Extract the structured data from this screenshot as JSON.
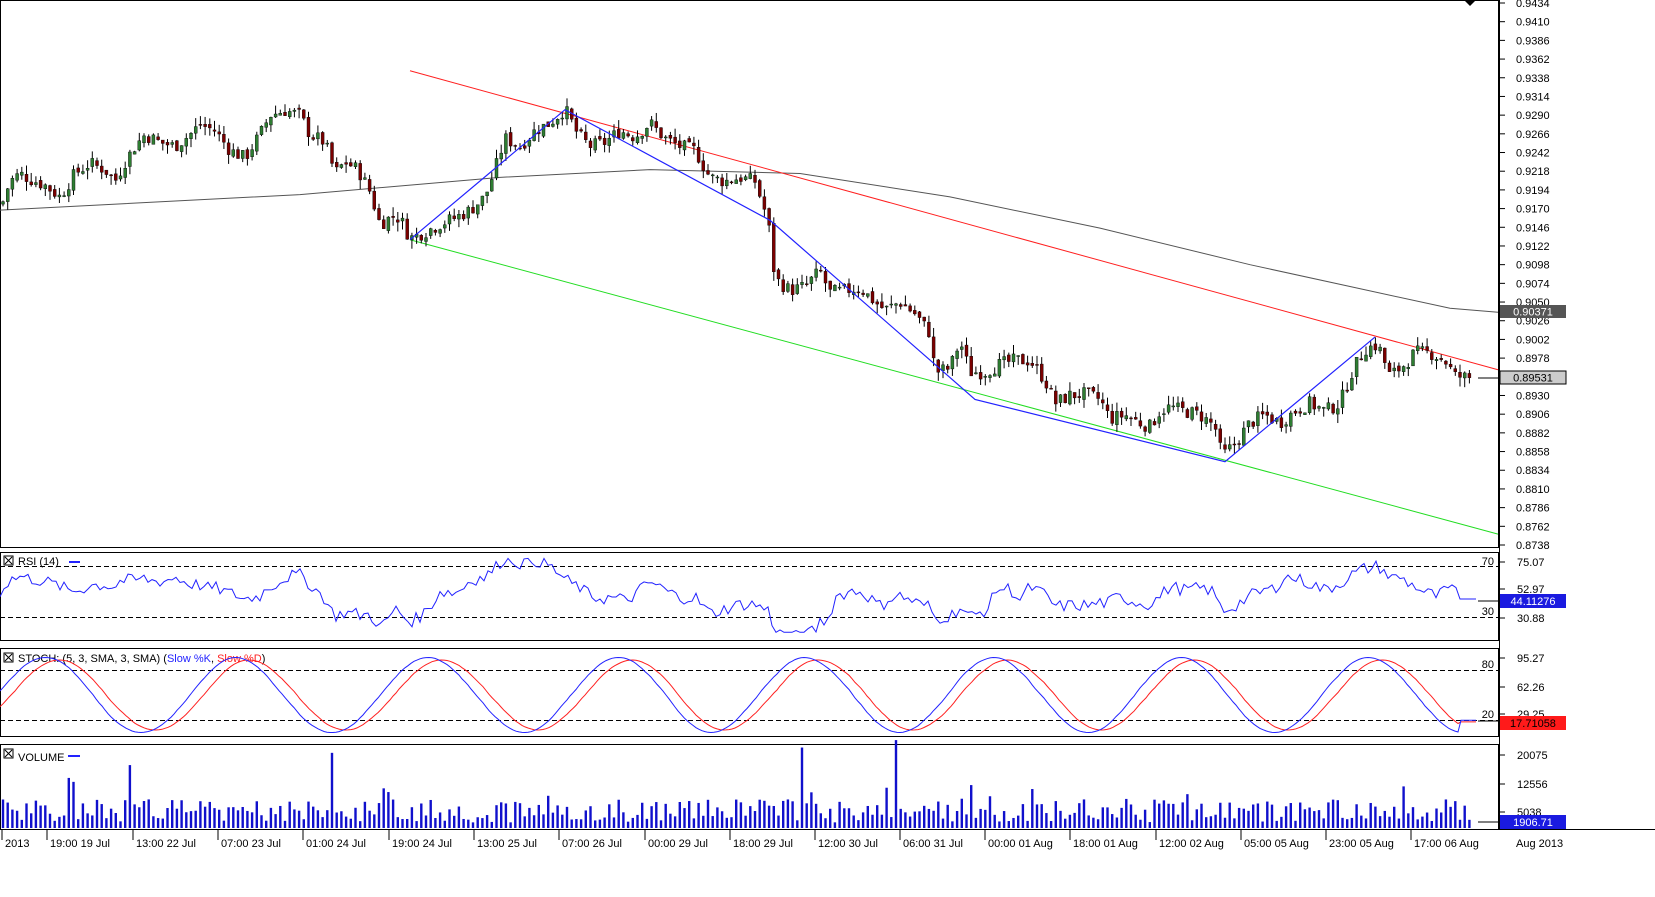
{
  "colors": {
    "bull": "#2e7d32",
    "bear": "#7a0000",
    "ma": "#555555",
    "channel_upper": "#ff2020",
    "channel_lower": "#22dd22",
    "zigzag": "#2222ff",
    "rsi_line": "#2222ff",
    "stoch_k": "#2222ff",
    "stoch_d": "#ff2020",
    "volume": "#1010cc",
    "price_box_bg": "#555555",
    "last_price_box_bg": "#cccccc",
    "stoch_box_bg": "#ff1a1a",
    "rsi_box_bg": "#1a1ae0",
    "volume_box_bg": "#1a1ae0"
  },
  "price_panel": {
    "y_ticks": [
      "0.9434",
      "0.9410",
      "0.9386",
      "0.9362",
      "0.9338",
      "0.9314",
      "0.9290",
      "0.9266",
      "0.9242",
      "0.9218",
      "0.9194",
      "0.9170",
      "0.9146",
      "0.9122",
      "0.9098",
      "0.9074",
      "0.9050",
      "0.9026",
      "0.9002",
      "0.8978",
      "0.8954",
      "0.8930",
      "0.8906",
      "0.8882",
      "0.8858",
      "0.8834",
      "0.8810",
      "0.8786",
      "0.8762",
      "0.8738"
    ],
    "ma_label": "0.90371",
    "last_price_label": "0.89531"
  },
  "rsi_panel": {
    "title": "RSI (14)",
    "level_high_label": "70",
    "level_low_label": "30",
    "y_ticks": [
      "75.07",
      "52.97",
      "30.88"
    ],
    "current_label": "44.11276"
  },
  "stoch_panel": {
    "title_prefix": "STOCH: (5, 3, SMA, 3, SMA) (",
    "k_label": "Slow %K",
    "separator": ", ",
    "d_label": "Slow %D",
    "title_suffix": ")",
    "level_high_label": "80",
    "level_low_label": "20",
    "y_ticks": [
      "95.27",
      "62.26",
      "29.25"
    ],
    "current_label": "17.71058"
  },
  "volume_panel": {
    "title": "VOLUME",
    "y_ticks": [
      "20075",
      "12556",
      "5038"
    ],
    "current_label": "1906.71"
  },
  "x_axis": {
    "labels": [
      "2013",
      "19:00 19 Jul",
      "13:00 22 Jul",
      "07:00 23 Jul",
      "01:00 24 Jul",
      "19:00 24 Jul",
      "13:00 25 Jul",
      "07:00 26 Jul",
      "00:00 29 Jul",
      "18:00 29 Jul",
      "12:00 30 Jul",
      "06:00 31 Jul",
      "00:00 01 Aug",
      "18:00 01 Aug",
      "12:00 02 Aug",
      "05:00 05 Aug",
      "23:00 05 Aug",
      "17:00 06 Aug"
    ],
    "right_label": "Aug 2013"
  },
  "chart_data": {
    "type": "candlestick",
    "instrument_hint": "hourly candles with 200-period moving average, descending channel",
    "y_range": [
      0.8738,
      0.9434
    ],
    "x_labels": [
      "2013",
      "19:00 19 Jul",
      "13:00 22 Jul",
      "07:00 23 Jul",
      "01:00 24 Jul",
      "19:00 24 Jul",
      "13:00 25 Jul",
      "07:00 26 Jul",
      "00:00 29 Jul",
      "18:00 29 Jul",
      "12:00 30 Jul",
      "06:00 31 Jul",
      "00:00 01 Aug",
      "18:00 01 Aug",
      "12:00 02 Aug",
      "05:00 05 Aug",
      "23:00 05 Aug",
      "17:00 06 Aug"
    ],
    "close_path": [
      [
        0,
        0.9168
      ],
      [
        10,
        0.9205
      ],
      [
        20,
        0.9215
      ],
      [
        30,
        0.9208
      ],
      [
        45,
        0.92
      ],
      [
        60,
        0.9185
      ],
      [
        75,
        0.9215
      ],
      [
        90,
        0.9228
      ],
      [
        105,
        0.922
      ],
      [
        115,
        0.9205
      ],
      [
        125,
        0.923
      ],
      [
        135,
        0.925
      ],
      [
        145,
        0.9265
      ],
      [
        160,
        0.9255
      ],
      [
        175,
        0.925
      ],
      [
        190,
        0.9265
      ],
      [
        200,
        0.9278
      ],
      [
        215,
        0.927
      ],
      [
        230,
        0.9245
      ],
      [
        245,
        0.9235
      ],
      [
        260,
        0.9265
      ],
      [
        270,
        0.929
      ],
      [
        285,
        0.9296
      ],
      [
        300,
        0.929
      ],
      [
        310,
        0.9265
      ],
      [
        325,
        0.9255
      ],
      [
        335,
        0.9215
      ],
      [
        345,
        0.923
      ],
      [
        358,
        0.922
      ],
      [
        370,
        0.9192
      ],
      [
        380,
        0.915
      ],
      [
        392,
        0.916
      ],
      [
        400,
        0.9158
      ],
      [
        410,
        0.9132
      ],
      [
        425,
        0.914
      ],
      [
        440,
        0.915
      ],
      [
        455,
        0.9158
      ],
      [
        470,
        0.9168
      ],
      [
        485,
        0.9185
      ],
      [
        495,
        0.922
      ],
      [
        505,
        0.926
      ],
      [
        520,
        0.925
      ],
      [
        535,
        0.927
      ],
      [
        550,
        0.928
      ],
      [
        565,
        0.9298
      ],
      [
        578,
        0.9265
      ],
      [
        590,
        0.925
      ],
      [
        605,
        0.9255
      ],
      [
        620,
        0.927
      ],
      [
        635,
        0.9262
      ],
      [
        650,
        0.928
      ],
      [
        665,
        0.926
      ],
      [
        680,
        0.925
      ],
      [
        695,
        0.9245
      ],
      [
        710,
        0.921
      ],
      [
        725,
        0.9205
      ],
      [
        740,
        0.921
      ],
      [
        755,
        0.9205
      ],
      [
        768,
        0.9155
      ],
      [
        775,
        0.908
      ],
      [
        790,
        0.9065
      ],
      [
        805,
        0.907
      ],
      [
        820,
        0.909
      ],
      [
        830,
        0.9062
      ],
      [
        845,
        0.9065
      ],
      [
        860,
        0.9068
      ],
      [
        875,
        0.905
      ],
      [
        885,
        0.904
      ],
      [
        900,
        0.905
      ],
      [
        915,
        0.9035
      ],
      [
        930,
        0.901
      ],
      [
        935,
        0.896
      ],
      [
        950,
        0.8965
      ],
      [
        960,
        0.9
      ],
      [
        970,
        0.896
      ],
      [
        985,
        0.896
      ],
      [
        1000,
        0.897
      ],
      [
        1015,
        0.8975
      ],
      [
        1030,
        0.8975
      ],
      [
        1045,
        0.895
      ],
      [
        1055,
        0.892
      ],
      [
        1070,
        0.893
      ],
      [
        1085,
        0.8932
      ],
      [
        1100,
        0.8925
      ],
      [
        1110,
        0.89
      ],
      [
        1125,
        0.8905
      ],
      [
        1140,
        0.8895
      ],
      [
        1150,
        0.889
      ],
      [
        1160,
        0.891
      ],
      [
        1170,
        0.8915
      ],
      [
        1185,
        0.891
      ],
      [
        1200,
        0.8905
      ],
      [
        1215,
        0.889
      ],
      [
        1222,
        0.8852
      ],
      [
        1235,
        0.8868
      ],
      [
        1250,
        0.8895
      ],
      [
        1265,
        0.8905
      ],
      [
        1280,
        0.8895
      ],
      [
        1295,
        0.891
      ],
      [
        1310,
        0.892
      ],
      [
        1325,
        0.891
      ],
      [
        1340,
        0.892
      ],
      [
        1352,
        0.896
      ],
      [
        1365,
        0.899
      ],
      [
        1378,
        0.8995
      ],
      [
        1390,
        0.8955
      ],
      [
        1405,
        0.897
      ],
      [
        1415,
        0.8985
      ],
      [
        1430,
        0.8985
      ],
      [
        1445,
        0.8975
      ],
      [
        1455,
        0.8955
      ],
      [
        1468,
        0.8953
      ]
    ],
    "moving_average_path": [
      [
        0,
        0.9168
      ],
      [
        300,
        0.9188
      ],
      [
        500,
        0.921
      ],
      [
        650,
        0.922
      ],
      [
        800,
        0.9215
      ],
      [
        950,
        0.9185
      ],
      [
        1100,
        0.9145
      ],
      [
        1250,
        0.9098
      ],
      [
        1350,
        0.907
      ],
      [
        1450,
        0.9042
      ],
      [
        1498,
        0.9037
      ]
    ],
    "channel_upper": [
      [
        410,
        0.9347
      ],
      [
        1498,
        0.8963
      ]
    ],
    "channel_lower": [
      [
        410,
        0.913
      ],
      [
        1498,
        0.8752
      ]
    ],
    "zigzag": [
      [
        410,
        0.913
      ],
      [
        565,
        0.9297
      ],
      [
        770,
        0.9155
      ],
      [
        975,
        0.8925
      ],
      [
        1225,
        0.8845
      ],
      [
        1375,
        0.9005
      ]
    ],
    "last_close": 0.89531,
    "ma_last": 0.90371,
    "rsi": {
      "period": 14,
      "levels": [
        30,
        70
      ],
      "last": 44.11276
    },
    "stochastic": {
      "params": "5, 3, SMA, 3, SMA",
      "levels": [
        20,
        80
      ],
      "last": 17.71058
    },
    "volume": {
      "last": 1906.71,
      "y_ticks": [
        5038,
        12556,
        20075
      ]
    }
  }
}
